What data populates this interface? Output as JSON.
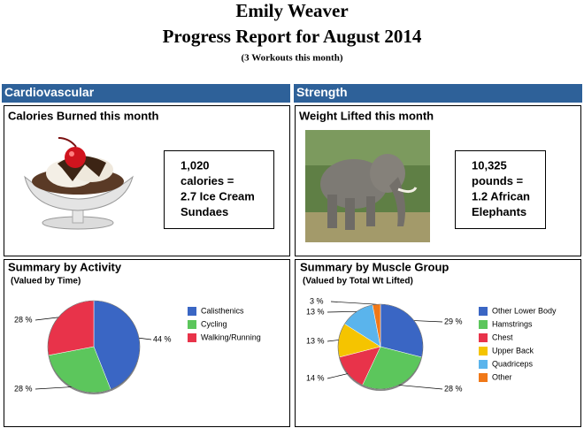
{
  "header": {
    "name": "Emily Weaver",
    "title": "Progress Report for August 2014",
    "subtitle": "(3 Workouts this month)"
  },
  "cardio": {
    "section": "Cardiovascular",
    "panel_title": "Calories Burned this month",
    "box": [
      "1,020",
      "calories =",
      "2.7 Ice Cream",
      "Sundaes"
    ]
  },
  "strength": {
    "section": "Strength",
    "panel_title": "Weight Lifted this month",
    "box": [
      "10,325",
      "pounds =",
      "1.2 African",
      "Elephants"
    ]
  },
  "chart_data": [
    {
      "type": "pie",
      "title": "Summary by Activity",
      "subtitle": "(Valued by Time)",
      "categories": [
        "Calisthenics",
        "Cycling",
        "Walking/Running"
      ],
      "values": [
        44,
        28,
        28
      ],
      "value_labels": [
        "44 %",
        "28 %",
        "28 %"
      ],
      "colors": [
        "#3a66c4",
        "#5cc65c",
        "#e8334a"
      ]
    },
    {
      "type": "pie",
      "title": "Summary by Muscle Group",
      "subtitle": "(Valued by Total Wt Lifted)",
      "categories": [
        "Other Lower Body",
        "Hamstrings",
        "Chest",
        "Upper Back",
        "Quadriceps",
        "Other"
      ],
      "values": [
        29,
        28,
        14,
        13,
        13,
        3
      ],
      "value_labels": [
        "29 %",
        "28 %",
        "14 %",
        "13 %",
        "13 %",
        "3 %"
      ],
      "colors": [
        "#3a66c4",
        "#5cc65c",
        "#e8334a",
        "#f5c400",
        "#5ab4ec",
        "#f07818"
      ]
    }
  ]
}
